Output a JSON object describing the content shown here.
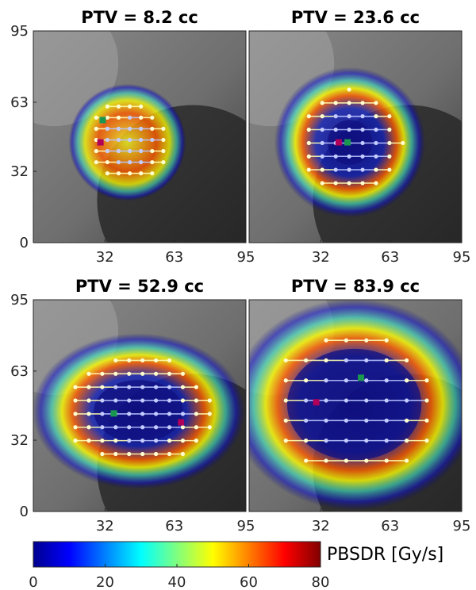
{
  "colors": {
    "low": "#00008f",
    "mid": "#7fff7f",
    "high": "#800000",
    "spot_green": "#1a9850",
    "spot_magenta": "#b0005a"
  },
  "chart_data": [
    {
      "type": "heatmap",
      "title": "PTV = 8.2 cc",
      "xlim": [
        0,
        95
      ],
      "ylim": [
        0,
        95
      ],
      "xticks": [
        "32",
        "63",
        "95"
      ],
      "yticks": [
        "95",
        "63",
        "32",
        "0"
      ],
      "dose_region": {
        "center": [
          42,
          45
        ],
        "radius": [
          21,
          21
        ],
        "cold_core_radius": [
          0,
          0
        ]
      },
      "spots_green": [
        [
          31,
          55
        ]
      ],
      "spots_magenta": [
        [
          30,
          45
        ]
      ],
      "cb_range": [
        0,
        80
      ]
    },
    {
      "type": "heatmap",
      "title": "PTV = 23.6 cc",
      "xlim": [
        0,
        95
      ],
      "ylim": [
        0,
        95
      ],
      "xticks": [
        "32",
        "63",
        "95"
      ],
      "yticks": [],
      "dose_region": {
        "center": [
          45,
          45
        ],
        "radius": [
          27,
          27
        ],
        "cold_core_radius": [
          10,
          10
        ]
      },
      "spots_green": [
        [
          44,
          45
        ]
      ],
      "spots_magenta": [
        [
          40,
          45
        ]
      ],
      "cb_range": [
        0,
        80
      ]
    },
    {
      "type": "heatmap",
      "title": "PTV = 52.9 cc",
      "xlim": [
        0,
        95
      ],
      "ylim": [
        0,
        95
      ],
      "xticks": [
        "32",
        "63",
        "95"
      ],
      "yticks": [
        "95",
        "63",
        "32",
        "0"
      ],
      "dose_region": {
        "center": [
          47,
          45
        ],
        "radius": [
          38,
          28
        ],
        "cold_core_radius": [
          20,
          14
        ]
      },
      "spots_green": [
        [
          36,
          44
        ]
      ],
      "spots_magenta": [
        [
          66,
          40
        ]
      ],
      "cb_range": [
        0,
        80
      ]
    },
    {
      "type": "heatmap",
      "title": "PTV = 83.9 cc",
      "xlim": [
        0,
        95
      ],
      "ylim": [
        0,
        95
      ],
      "xticks": [
        "32",
        "63",
        "95"
      ],
      "yticks": [],
      "dose_region": {
        "center": [
          47,
          48
        ],
        "radius": [
          44,
          38
        ],
        "cold_core_radius": [
          30,
          25
        ]
      },
      "spots_green": [
        [
          50,
          60
        ]
      ],
      "spots_magenta": [
        [
          30,
          49
        ]
      ],
      "cb_range": [
        0,
        80
      ]
    }
  ],
  "colorbar": {
    "label": "PBSDR [Gy/s]",
    "ticks": [
      "0",
      "20",
      "40",
      "60",
      "80"
    ],
    "min": 0,
    "max": 80
  }
}
